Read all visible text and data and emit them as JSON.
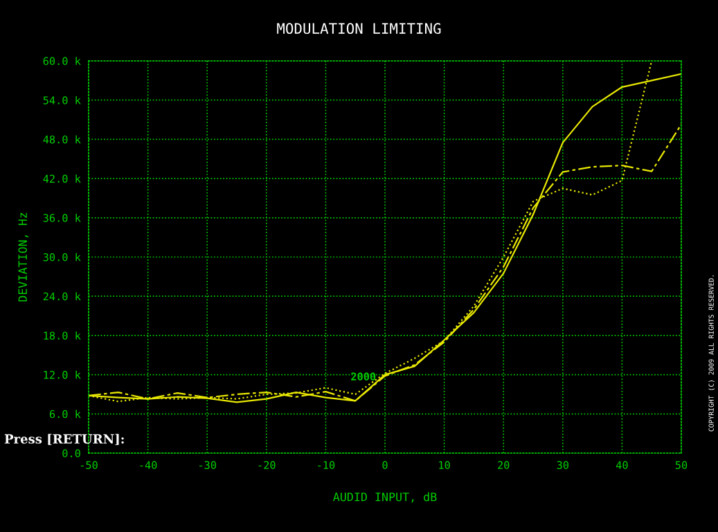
{
  "chart_data": {
    "type": "line",
    "title": "MODULATION LIMITING",
    "xlabel": "AUDID INPUT, dB",
    "ylabel": "DEVIATION, Hz",
    "x": [
      -50,
      -45,
      -40,
      -35,
      -30,
      -25,
      -20,
      -15,
      -10,
      -5,
      0,
      5,
      10,
      15,
      20,
      25,
      30,
      35,
      40,
      45,
      50
    ],
    "series": [
      {
        "color": "#e8e800",
        "line_style": "solid",
        "values": [
          8800,
          8500,
          8300,
          8600,
          8400,
          7800,
          8300,
          9300,
          8500,
          8000,
          12000,
          13300,
          17300,
          21500,
          27500,
          36500,
          47500,
          53000,
          56000,
          57000,
          58000
        ]
      },
      {
        "color": "#e8e800",
        "line_style": "dashed",
        "values": [
          8800,
          9300,
          8300,
          9200,
          8500,
          9000,
          9300,
          8600,
          9400,
          8000,
          11800,
          13500,
          17000,
          22000,
          28500,
          37500,
          43000,
          43800,
          44000,
          43100,
          50300
        ]
      },
      {
        "color": "#e8e800",
        "line_style": "dotted",
        "values": [
          8800,
          7900,
          8500,
          8300,
          8500,
          8300,
          9000,
          9200,
          10000,
          9000,
          12200,
          14500,
          17200,
          22500,
          30000,
          38500,
          40500,
          39500,
          41700,
          60000,
          null
        ]
      }
    ],
    "xlim": [
      -50,
      50
    ],
    "xticks": [
      -50,
      -40,
      -30,
      -20,
      -10,
      0,
      10,
      20,
      30,
      40,
      50
    ],
    "ylim": [
      0,
      60000
    ],
    "yticks": [
      {
        "value": 0,
        "label": "0.0"
      },
      {
        "value": 6000,
        "label": "6.0 k"
      },
      {
        "value": 12000,
        "label": "12.0 k"
      },
      {
        "value": 18000,
        "label": "18.0 k"
      },
      {
        "value": 24000,
        "label": "24.0 k"
      },
      {
        "value": 30000,
        "label": "30.0 k"
      },
      {
        "value": 36000,
        "label": "36.0 k"
      },
      {
        "value": 42000,
        "label": "42.0 k"
      },
      {
        "value": 48000,
        "label": "48.0 k"
      },
      {
        "value": 54000,
        "label": "54.0 k"
      },
      {
        "value": 60000,
        "label": "60.0 k"
      }
    ],
    "grid": true,
    "marker": "none",
    "annotations": [
      "2000",
      "Press [RETURN]:",
      "COPYRIGHT (C) 2009 ALL RIGHTS RESERVED."
    ]
  }
}
